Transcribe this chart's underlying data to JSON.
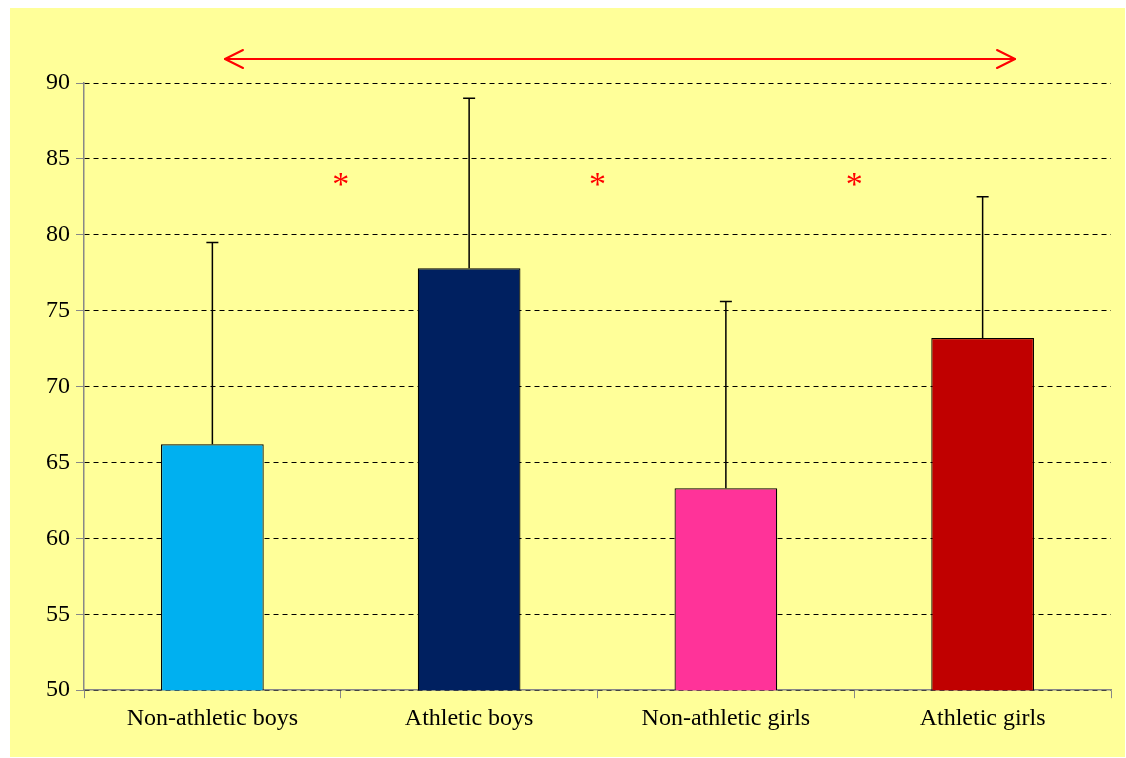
{
  "chart_data": {
    "type": "bar",
    "categories": [
      "Non-athletic boys",
      "Athletic boys",
      "Non-athletic girls",
      "Athletic girls"
    ],
    "values": [
      66.2,
      77.8,
      63.3,
      73.2
    ],
    "colors": [
      "#00b0f0",
      "#002060",
      "#ff3399",
      "#c00000"
    ],
    "errors": [
      [
        66.2,
        79.5
      ],
      [
        77.8,
        89.0
      ],
      [
        63.3,
        75.6
      ],
      [
        73.2,
        82.5
      ]
    ],
    "ylim": [
      50,
      90
    ],
    "yticks": [
      50,
      55,
      60,
      65,
      70,
      75,
      80,
      85,
      90
    ],
    "grid": "y",
    "annotations": [
      "*",
      "*",
      "*"
    ]
  }
}
